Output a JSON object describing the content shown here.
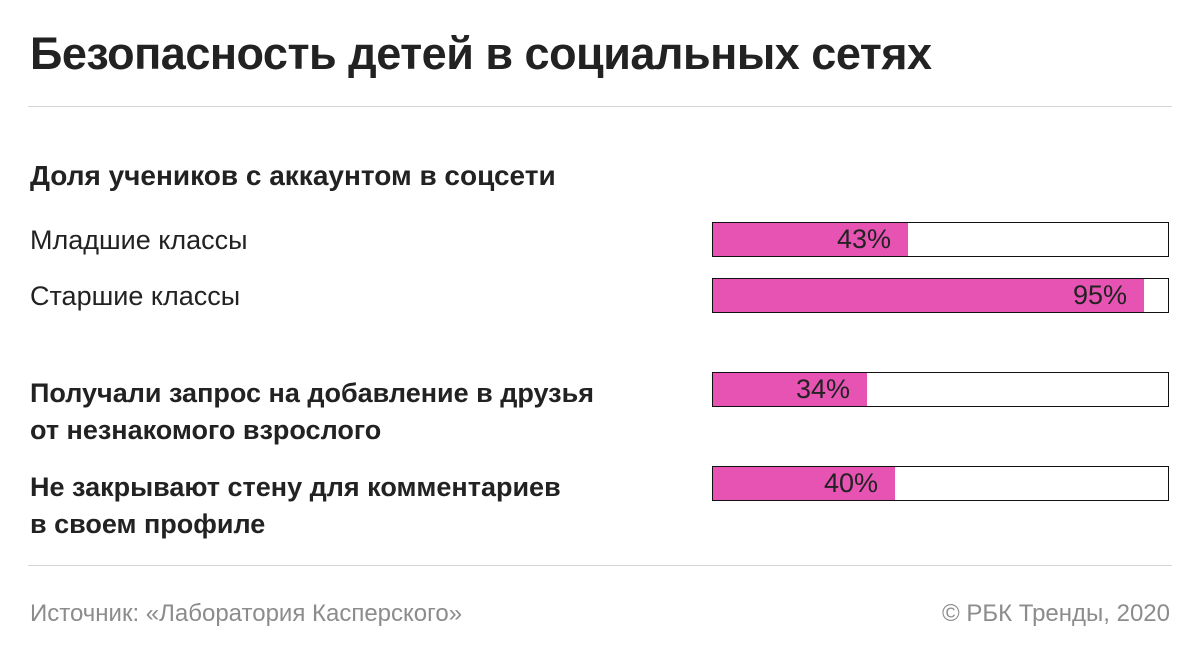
{
  "title": "Безопасность детей в социальных сетях",
  "subtitle": "Доля учеников с аккаунтом в соцсети",
  "chart_data": {
    "type": "bar",
    "orientation": "horizontal",
    "unit": "%",
    "xlim": [
      0,
      100
    ],
    "bar_color": "#e653b3",
    "categories": [
      "Младшие классы",
      "Старшие классы",
      "Получали запрос на добавление в друзья от незнакомого взрослого",
      "Не закрывают стену для комментариев в своем профиле"
    ],
    "values": [
      43,
      95,
      34,
      40
    ],
    "value_labels": [
      "43%",
      "95%",
      "34%",
      "40%"
    ]
  },
  "rows": [
    {
      "label_lines": [
        "Младшие классы"
      ],
      "bold": false
    },
    {
      "label_lines": [
        "Старшие классы"
      ],
      "bold": false
    },
    {
      "label_lines": [
        "Получали запрос на добавление в друзья",
        "от незнакомого взрослого"
      ],
      "bold": true
    },
    {
      "label_lines": [
        "Не закрывают стену для комментариев",
        "в своем профиле"
      ],
      "bold": true
    }
  ],
  "footer": {
    "source": "Источник: «Лаборатория Касперского»",
    "credit": "© РБК Тренды, 2020"
  }
}
